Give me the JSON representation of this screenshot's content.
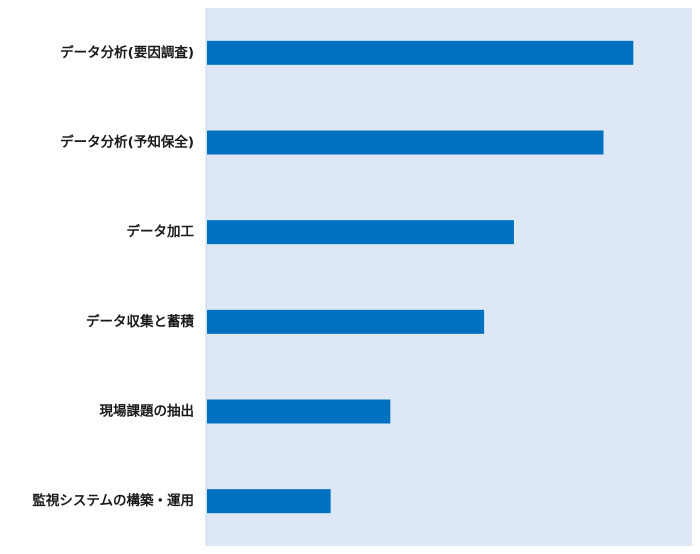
{
  "chart_data": {
    "type": "bar",
    "orientation": "horizontal",
    "categories": [
      "データ分析(要因調査)",
      "データ分析(予知保全)",
      "データ加工",
      "データ収集と蓄積",
      "現場課題の抽出",
      "監視システムの構築・運用"
    ],
    "values": [
      100,
      93,
      72,
      65,
      43,
      29
    ],
    "xlim": [
      0,
      114
    ],
    "grid": false,
    "legend": "none",
    "colors": {
      "bar": "#0070C0",
      "plot_background": "#DEE8F5",
      "axis_line": "#C7D7EC",
      "label_text": "#1a1a1a"
    }
  }
}
